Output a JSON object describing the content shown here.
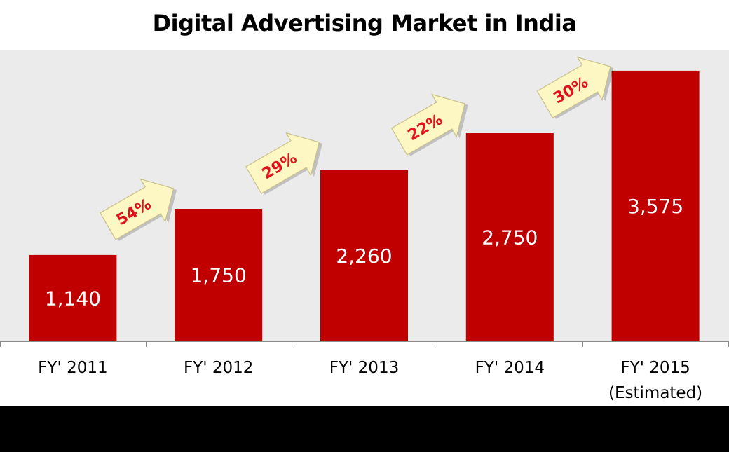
{
  "chart_data": {
    "type": "bar",
    "title": "Digital Advertising Market in India",
    "categories": [
      [
        "FY' 2011"
      ],
      [
        "FY' 2012"
      ],
      [
        "FY' 2013"
      ],
      [
        "FY' 2014"
      ],
      [
        "FY' 2015",
        "(Estimated)"
      ]
    ],
    "values": [
      1140,
      1750,
      2260,
      2750,
      3575
    ],
    "value_labels": [
      "1,140",
      "1,750",
      "2,260",
      "2,750",
      "3,575"
    ],
    "growth_annotations": [
      {
        "between": [
          0,
          1
        ],
        "label": "54%"
      },
      {
        "between": [
          1,
          2
        ],
        "label": "29%"
      },
      {
        "between": [
          2,
          3
        ],
        "label": "22%"
      },
      {
        "between": [
          3,
          4
        ],
        "label": "30%"
      }
    ],
    "xlabel": "",
    "ylabel": "",
    "ylim": [
      0,
      4000
    ],
    "grid": false,
    "legend": "none",
    "bar_color": "#c00000",
    "plot_background": "#ebebeb",
    "arrow_fill": "#fdf7c3",
    "growth_label_color": "#e0121b"
  }
}
